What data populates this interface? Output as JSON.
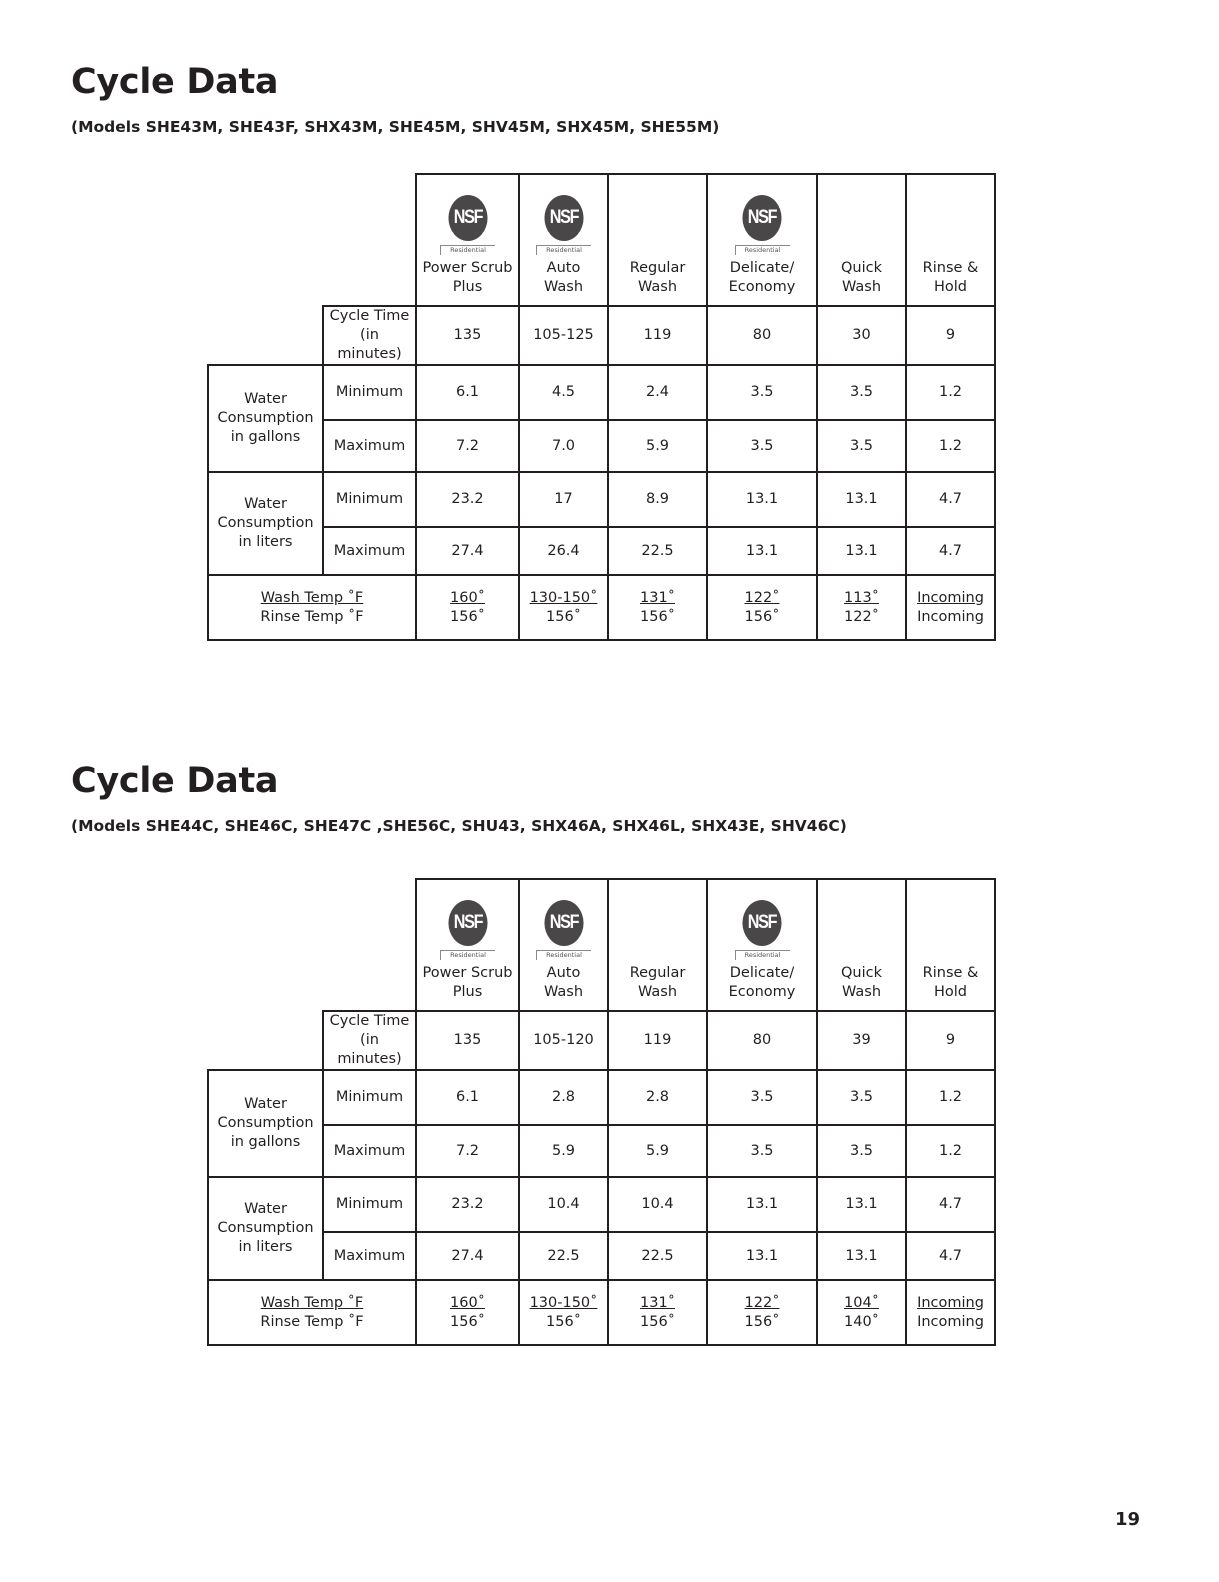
{
  "page_number": "19",
  "columns": [
    {
      "label": "Power Scrub Plus",
      "nsf": true
    },
    {
      "label": "Auto Wash",
      "nsf": true
    },
    {
      "label": "Regular Wash",
      "nsf": false
    },
    {
      "label": "Delicate/ Economy",
      "nsf": true
    },
    {
      "label": "Quick Wash",
      "nsf": false
    },
    {
      "label": "Rinse & Hold",
      "nsf": false
    }
  ],
  "nsf_logo": {
    "text": "NSF",
    "sub": "Residential"
  },
  "row_labels": {
    "cycle_time": "Cycle Time (in minutes)",
    "water_gallons": "Water Consumption in gallons",
    "water_liters": "Water Consumption in liters",
    "minimum": "Minimum",
    "maximum": "Maximum",
    "wash_temp": "Wash Temp ˚F",
    "rinse_temp": "Rinse Temp ˚F"
  },
  "tables": [
    {
      "title": "Cycle Data",
      "models": "(Models SHE43M, SHE43F, SHX43M, SHE45M, SHV45M, SHX45M, SHE55M)",
      "cycle_time": [
        "135",
        "105-125",
        "119",
        "80",
        "30",
        "9"
      ],
      "gal_min": [
        "6.1",
        "4.5",
        "2.4",
        "3.5",
        "3.5",
        "1.2"
      ],
      "gal_max": [
        "7.2",
        "7.0",
        "5.9",
        "3.5",
        "3.5",
        "1.2"
      ],
      "lit_min": [
        "23.2",
        "17",
        "8.9",
        "13.1",
        "13.1",
        "4.7"
      ],
      "lit_max": [
        "27.4",
        "26.4",
        "22.5",
        "13.1",
        "13.1",
        "4.7"
      ],
      "wash_temp": [
        "160˚",
        "130-150˚",
        "131˚",
        "122˚",
        "113˚",
        "Incoming"
      ],
      "rinse_temp": [
        "156˚",
        "156˚",
        "156˚",
        "156˚",
        "122˚",
        "Incoming"
      ]
    },
    {
      "title": "Cycle Data",
      "models": "(Models SHE44C, SHE46C, SHE47C ,SHE56C, SHU43, SHX46A, SHX46L, SHX43E, SHV46C)",
      "cycle_time": [
        "135",
        "105-120",
        "119",
        "80",
        "39",
        "9"
      ],
      "gal_min": [
        "6.1",
        "2.8",
        "2.8",
        "3.5",
        "3.5",
        "1.2"
      ],
      "gal_max": [
        "7.2",
        "5.9",
        "5.9",
        "3.5",
        "3.5",
        "1.2"
      ],
      "lit_min": [
        "23.2",
        "10.4",
        "10.4",
        "13.1",
        "13.1",
        "4.7"
      ],
      "lit_max": [
        "27.4",
        "22.5",
        "22.5",
        "13.1",
        "13.1",
        "4.7"
      ],
      "wash_temp": [
        "160˚",
        "130-150˚",
        "131˚",
        "122˚",
        "104˚",
        "Incoming"
      ],
      "rinse_temp": [
        "156˚",
        "156˚",
        "156˚",
        "156˚",
        "140˚",
        "Incoming"
      ]
    }
  ]
}
